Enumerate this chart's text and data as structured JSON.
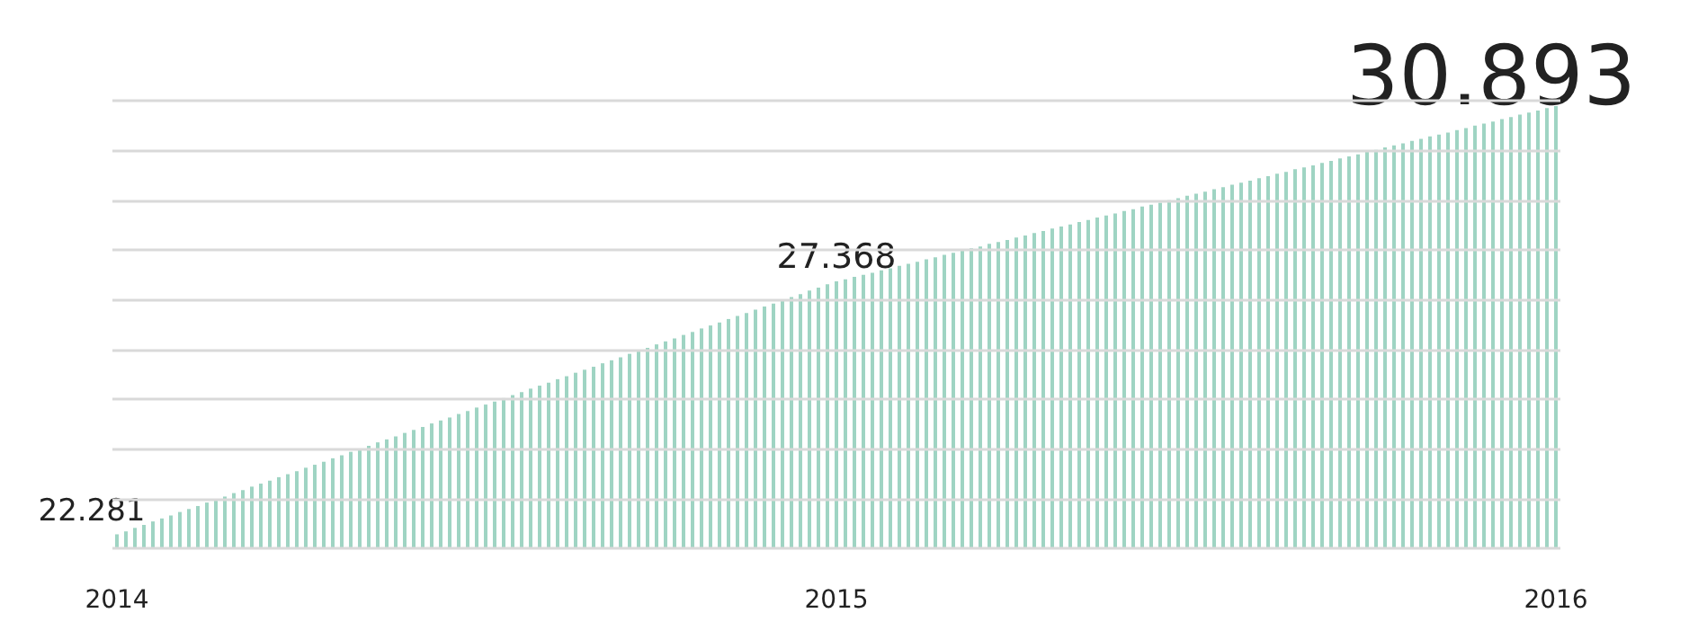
{
  "chart_data": {
    "type": "bar",
    "color": "#9fd4c3",
    "categories": [
      "2014",
      null,
      null,
      null,
      null,
      null,
      null,
      null,
      null,
      null,
      null,
      null,
      null,
      null,
      null,
      null,
      null,
      null,
      null,
      null,
      null,
      null,
      null,
      null,
      null,
      null,
      null,
      null,
      null,
      null,
      null,
      null,
      null,
      null,
      null,
      null,
      null,
      null,
      null,
      null,
      null,
      null,
      null,
      null,
      null,
      null,
      null,
      null,
      null,
      null,
      null,
      null,
      null,
      null,
      null,
      null,
      null,
      null,
      null,
      null,
      null,
      null,
      null,
      null,
      null,
      null,
      null,
      null,
      null,
      null,
      null,
      null,
      null,
      null,
      null,
      null,
      null,
      null,
      null,
      null,
      "2015",
      null,
      null,
      null,
      null,
      null,
      null,
      null,
      null,
      null,
      null,
      null,
      null,
      null,
      null,
      null,
      null,
      null,
      null,
      null,
      null,
      null,
      null,
      null,
      null,
      null,
      null,
      null,
      null,
      null,
      null,
      null,
      null,
      null,
      null,
      null,
      null,
      null,
      null,
      null,
      null,
      null,
      null,
      null,
      null,
      null,
      null,
      null,
      null,
      null,
      null,
      null,
      null,
      null,
      null,
      null,
      null,
      null,
      null,
      null,
      null,
      null,
      null,
      null,
      null,
      null,
      null,
      null,
      null,
      null,
      null,
      null,
      null,
      null,
      null,
      null,
      null,
      null,
      null,
      null,
      "2016"
    ],
    "values": [
      22.281,
      22.34,
      22.41,
      22.47,
      22.54,
      22.6,
      22.66,
      22.73,
      22.79,
      22.85,
      22.92,
      22.98,
      23.04,
      23.11,
      23.17,
      23.24,
      23.3,
      23.36,
      23.43,
      23.49,
      23.55,
      23.62,
      23.68,
      23.74,
      23.81,
      23.87,
      23.94,
      24.0,
      24.06,
      24.13,
      24.19,
      24.25,
      24.32,
      24.38,
      24.44,
      24.51,
      24.57,
      24.63,
      24.7,
      24.76,
      24.83,
      24.89,
      24.95,
      25.02,
      25.08,
      25.14,
      25.21,
      25.27,
      25.33,
      25.4,
      25.46,
      25.53,
      25.59,
      25.65,
      25.72,
      25.78,
      25.84,
      25.91,
      25.97,
      26.03,
      26.1,
      26.16,
      26.22,
      26.29,
      26.35,
      26.42,
      26.48,
      26.54,
      26.61,
      26.67,
      26.73,
      26.8,
      26.86,
      26.92,
      26.99,
      27.05,
      27.11,
      27.18,
      27.24,
      27.31,
      27.368,
      27.41,
      27.46,
      27.5,
      27.54,
      27.59,
      27.63,
      27.68,
      27.72,
      27.76,
      27.81,
      27.85,
      27.9,
      27.94,
      27.98,
      28.03,
      28.07,
      28.12,
      28.16,
      28.2,
      28.25,
      28.29,
      28.34,
      28.38,
      28.43,
      28.47,
      28.51,
      28.56,
      28.6,
      28.65,
      28.69,
      28.73,
      28.78,
      28.82,
      28.87,
      28.91,
      28.95,
      29.0,
      29.04,
      29.09,
      29.13,
      29.17,
      29.22,
      29.26,
      29.31,
      29.35,
      29.39,
      29.44,
      29.48,
      29.53,
      29.57,
      29.62,
      29.66,
      29.7,
      29.75,
      29.79,
      29.84,
      29.88,
      29.92,
      29.97,
      30.01,
      30.06,
      30.1,
      30.14,
      30.19,
      30.23,
      30.28,
      30.32,
      30.36,
      30.41,
      30.45,
      30.5,
      30.54,
      30.58,
      30.63,
      30.67,
      30.72,
      30.76,
      30.8,
      30.85,
      30.893
    ],
    "value_labels": [
      "22.281",
      null,
      null,
      null,
      null,
      null,
      null,
      null,
      null,
      null,
      null,
      null,
      null,
      null,
      null,
      null,
      null,
      null,
      null,
      null,
      null,
      null,
      null,
      null,
      null,
      null,
      null,
      null,
      null,
      null,
      null,
      null,
      null,
      null,
      null,
      null,
      null,
      null,
      null,
      null,
      null,
      null,
      null,
      null,
      null,
      null,
      null,
      null,
      null,
      null,
      null,
      null,
      null,
      null,
      null,
      null,
      null,
      null,
      null,
      null,
      null,
      null,
      null,
      null,
      null,
      null,
      null,
      null,
      null,
      null,
      null,
      null,
      null,
      null,
      null,
      null,
      null,
      null,
      null,
      null,
      "27.368",
      null,
      null,
      null,
      null,
      null,
      null,
      null,
      null,
      null,
      null,
      null,
      null,
      null,
      null,
      null,
      null,
      null,
      null,
      null,
      null,
      null,
      null,
      null,
      null,
      null,
      null,
      null,
      null,
      null,
      null,
      null,
      null,
      null,
      null,
      null,
      null,
      null,
      null,
      null,
      null,
      null,
      null,
      null,
      null,
      null,
      null,
      null,
      null,
      null,
      null,
      null,
      null,
      null,
      null,
      null,
      null,
      null,
      null,
      null,
      null,
      null,
      null,
      null,
      null,
      null,
      null,
      null,
      null,
      null,
      null,
      null,
      null,
      null,
      null,
      null,
      null,
      null,
      null,
      null,
      "30.893"
    ],
    "ylim": [
      22,
      31
    ],
    "yticks": [
      {
        "value": 22,
        "label": null
      },
      {
        "value": 23,
        "label": null
      },
      {
        "value": 24,
        "label": null
      },
      {
        "value": 25,
        "label": null
      },
      {
        "value": 26,
        "label": null
      },
      {
        "value": 27,
        "label": null
      },
      {
        "value": 28,
        "label": null
      },
      {
        "value": 29,
        "label": null
      },
      {
        "value": 30,
        "label": null
      },
      {
        "value": 31,
        "label": null
      }
    ],
    "grid": "y",
    "tick_labels": "x"
  }
}
